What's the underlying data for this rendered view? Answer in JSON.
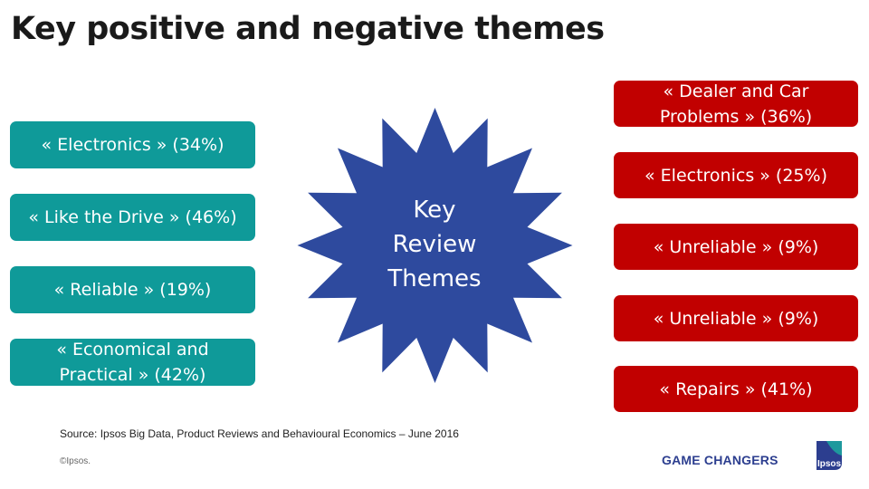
{
  "title": "Key positive and negative themes",
  "center": {
    "lines": [
      "Key",
      "Review",
      "Themes"
    ],
    "color": "#2e4a9e"
  },
  "positive_themes": [
    {
      "label": "« Electronics » (34%)"
    },
    {
      "label": "« Like the Drive » (46%)"
    },
    {
      "label": "« Reliable » (19%)"
    },
    {
      "label": "« Economical and Practical » (42%)"
    }
  ],
  "negative_themes": [
    {
      "label": "« Dealer and Car Problems » (36%)"
    },
    {
      "label": "« Electronics » (25%)"
    },
    {
      "label": "« Unreliable » (9%)"
    },
    {
      "label": "« Unreliable » (9%)"
    },
    {
      "label": "« Repairs » (41%)"
    }
  ],
  "colors": {
    "positive": "#0f9a99",
    "negative": "#c10000",
    "center": "#2e4a9e"
  },
  "footer": {
    "source": "Source: Ipsos Big Data, Product Reviews and Behavioural Economics – June 2016",
    "copyright": "©Ipsos.",
    "brand": "GAME CHANGERS",
    "logo_text": "Ipsos"
  }
}
